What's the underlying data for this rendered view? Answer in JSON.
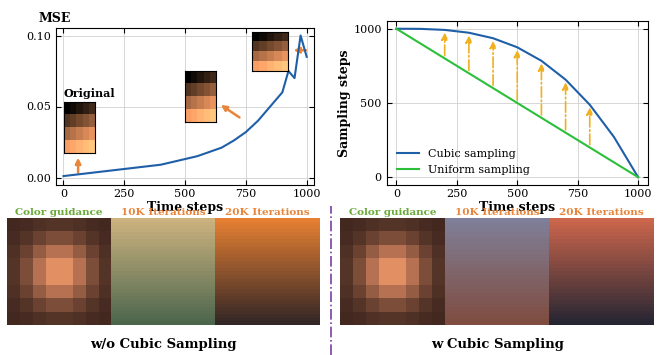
{
  "chart_data": [
    {
      "type": "line",
      "y_label": "MSE",
      "x_label": "Time steps",
      "x": [
        0,
        50,
        100,
        150,
        200,
        250,
        300,
        350,
        400,
        450,
        500,
        550,
        600,
        650,
        700,
        750,
        800,
        850,
        900,
        925,
        950,
        975,
        1000
      ],
      "series": [
        {
          "name": "MSE",
          "color": "#1f5fa8",
          "values": [
            0.001,
            0.002,
            0.003,
            0.004,
            0.005,
            0.006,
            0.007,
            0.008,
            0.009,
            0.011,
            0.013,
            0.015,
            0.018,
            0.021,
            0.026,
            0.032,
            0.04,
            0.05,
            0.06,
            0.075,
            0.07,
            0.1,
            0.085
          ]
        }
      ],
      "xlim": [
        -30,
        1030
      ],
      "xticks": [
        0,
        250,
        500,
        750,
        1000
      ],
      "ylim": [
        -0.005,
        0.105
      ],
      "yticks": [
        {
          "value": 0.0,
          "label": "0.00"
        },
        {
          "value": 0.05,
          "label": "0.05"
        },
        {
          "value": 0.1,
          "label": "0.10"
        }
      ],
      "grid": true,
      "annotations": [
        "Original"
      ]
    },
    {
      "type": "line",
      "y_label": "Sampling steps",
      "x_label": "Time steps",
      "series": [
        {
          "name": "Cubic sampling",
          "color": "#1f5fa8",
          "x": [
            0,
            100,
            200,
            300,
            400,
            500,
            600,
            700,
            800,
            900,
            1000
          ],
          "values": [
            1000,
            999,
            992,
            973,
            936,
            875,
            784,
            657,
            488,
            271,
            0
          ]
        },
        {
          "name": "Uniform sampling",
          "color": "#2bbf3a",
          "x": [
            0,
            1000
          ],
          "values": [
            1000,
            0
          ]
        }
      ],
      "xlim": [
        -40,
        1040
      ],
      "xticks": [
        0,
        250,
        500,
        750,
        1000
      ],
      "ylim": [
        -50,
        1050
      ],
      "yticks": [
        0,
        500,
        1000
      ],
      "grid": true,
      "legend": "lower left"
    }
  ],
  "image_rows": [
    {
      "caption": "w/o Cubic Sampling",
      "labels": [
        "Color guidance",
        "10K Iterations",
        "20K Iterations"
      ]
    },
    {
      "caption": "w Cubic Sampling",
      "labels": [
        "Color guidance",
        "10K Iterations",
        "20K Iterations"
      ]
    }
  ]
}
